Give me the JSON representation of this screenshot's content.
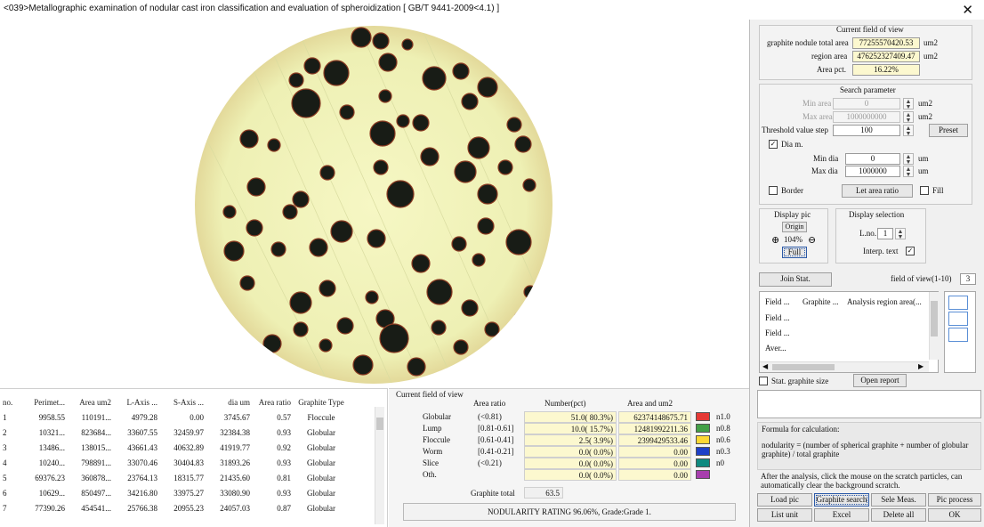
{
  "window": {
    "title": "<039>Metallographic examination of nodular cast iron classification and evaluation of spheroidization  [ GB/T 9441-2009<4.1) ]"
  },
  "table": {
    "columns": [
      "no.",
      "Perimet...",
      "Area um2",
      "L-Axis ...",
      "S-Axis ...",
      "dia um",
      "Area ratio",
      "Graphite Type"
    ],
    "rows": [
      [
        "1",
        "9958.55",
        "110191...",
        "4979.28",
        "0.00",
        "3745.67",
        "0.57",
        "Floccule"
      ],
      [
        "2",
        "10321...",
        "823684...",
        "33607.55",
        "32459.97",
        "32384.38",
        "0.93",
        "Globular"
      ],
      [
        "3",
        "13486...",
        "138015...",
        "43661.43",
        "40632.89",
        "41919.77",
        "0.92",
        "Globular"
      ],
      [
        "4",
        "10240...",
        "798891...",
        "33070.46",
        "30404.83",
        "31893.26",
        "0.93",
        "Globular"
      ],
      [
        "5",
        "69376.23",
        "360878...",
        "23764.13",
        "18315.77",
        "21435.60",
        "0.81",
        "Globular"
      ],
      [
        "6",
        "10629...",
        "850497...",
        "34216.80",
        "33975.27",
        "33080.90",
        "0.93",
        "Globular"
      ],
      [
        "7",
        "77390.26",
        "454541...",
        "25766.38",
        "20955.23",
        "24057.03",
        "0.87",
        "Globular"
      ]
    ]
  },
  "stats": {
    "section_title": "Current field of view",
    "col_area_ratio": "Area ratio",
    "col_number": "Number(pct)",
    "col_area": "Area and um2",
    "rows": [
      {
        "label": "Globular",
        "ratio": "(<0.81)",
        "number": "51.0( 80.3%)",
        "area": "62374148675.71",
        "color": "#e53935",
        "grade": "n1.0"
      },
      {
        "label": "Lump",
        "ratio": "[0.81-0.61]",
        "number": "10.0( 15.7%)",
        "area": "12481992211.36",
        "color": "#43a047",
        "grade": "n0.8"
      },
      {
        "label": "Floccule",
        "ratio": "[0.61-0.41]",
        "number": "2.5(  3.9%)",
        "area": "2399429533.46",
        "color": "#fdd835",
        "grade": "n0.6"
      },
      {
        "label": "Worm",
        "ratio": "[0.41-0.21]",
        "number": "0.0(  0.0%)",
        "area": "0.00",
        "color": "#1e40c8",
        "grade": "n0.3"
      },
      {
        "label": "Slice",
        "ratio": "(<0.21)",
        "number": "0.0(  0.0%)",
        "area": "0.00",
        "color": "#0f8a80",
        "grade": "n0"
      },
      {
        "label": "Oth.",
        "ratio": "",
        "number": "0.0(  0.0%)",
        "area": "0.00",
        "color": "#a83fae",
        "grade": ""
      }
    ],
    "graphite_total_label": "Graphite total",
    "graphite_total_value": "63.5",
    "rating_text": "NODULARITY RATING 96.06%, Grade:Grade 1."
  },
  "right": {
    "fov_title": "Current field of view",
    "total_area_label": "graphite nodule total area",
    "total_area_value": "77255570420.53",
    "region_area_label": "region area",
    "region_area_value": "476252327409.47",
    "unit_um2": "um2",
    "area_pct_label": "Area pct.",
    "area_pct_value": "16.22%",
    "search_title": "Search parameter",
    "min_area_label": "Min area",
    "min_area_value": "0",
    "max_area_label": "Max area",
    "max_area_value": "1000000000",
    "threshold_label": "Threshold value step",
    "threshold_value": "100",
    "preset_label": "Preset",
    "dia_label": "Dia m.",
    "min_dia_label": "Min dia",
    "min_dia_value": "0",
    "max_dia_label": "Max dia",
    "max_dia_value": "1000000",
    "unit_um": "um",
    "border_label": "Border",
    "let_area_ratio_label": "Let area ratio",
    "fill_label": "Fill",
    "display_pic_title": "Display pic",
    "origin_label": "Origin",
    "zoom_value": "104%",
    "full_label": "Full",
    "display_sel_title": "Display selection",
    "lno_label": "L.no.",
    "lno_value": "1",
    "interp_label": "Interp. text",
    "join_stat_label": "Join Stat.",
    "fov_range_label": "field of view(1-10)",
    "fov_range_value": "3",
    "list_headers": [
      "Field ...",
      "Graphite ...",
      "Analysis region area(..."
    ],
    "list_rows": [
      "Field ...",
      "Field ...",
      "Aver..."
    ],
    "stat_size_label": "Stat. graphite size",
    "open_report_label": "Open report",
    "formula_title": "Formula for calculation:",
    "formula_text": "nodularity = (number of spherical graphite + number of globular graphite) / total graphite",
    "hint_text": "After the analysis, click the mouse on the scratch particles, can automatically clear the background scratch.",
    "buttons_row1": [
      "Load pic",
      "Graphite search",
      "Sele Meas.",
      "Pic process"
    ],
    "buttons_row2": [
      "List unit",
      "Excel",
      "Delete all",
      "OK"
    ]
  }
}
